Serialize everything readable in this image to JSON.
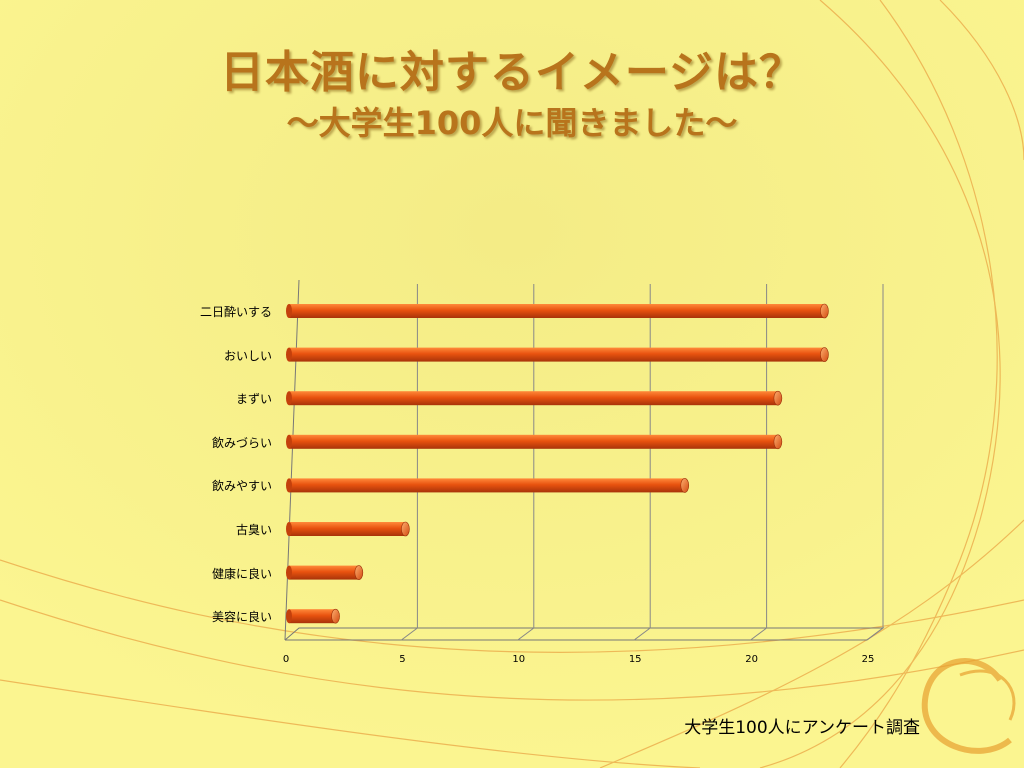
{
  "slide": {
    "title": "日本酒に対するイメージは？",
    "subtitle": "～大学生100人に聞きました～",
    "footnote": "大学生100人にアンケート調査"
  },
  "colors": {
    "background": "#fbf38a",
    "title": "#b8741c",
    "bar": "#e8520f",
    "bar_highlight": "#ff8a3a",
    "bar_shadow": "#a8330a",
    "swirl": "#e8a030"
  },
  "chart_data": {
    "type": "bar",
    "orientation": "horizontal",
    "title": "",
    "xlabel": "",
    "ylabel": "",
    "categories": [
      "二日酔いする",
      "おいしい",
      "まずい",
      "飲みづらい",
      "飲みやすい",
      "古臭い",
      "健康に良い",
      "美容に良い"
    ],
    "values": [
      23,
      23,
      21,
      21,
      17,
      5,
      3,
      2
    ],
    "xlim": [
      0,
      25
    ],
    "xticks": [
      0,
      5,
      10,
      15,
      20,
      25
    ],
    "grid": true,
    "legend": "none",
    "style": "3d-cylinder"
  }
}
